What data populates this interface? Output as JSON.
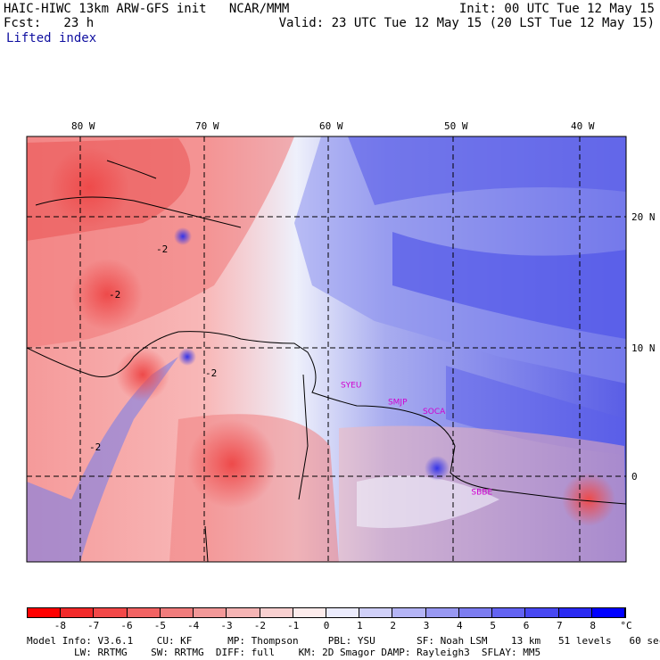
{
  "header": {
    "model_title": "HAIC-HIWC 13km ARW-GFS init   NCAR/MMM",
    "fcst_label": "Fcst:   23 h",
    "field_name": "Lifted index",
    "init_time": "Init: 00 UTC Tue 12 May 15",
    "valid_time": "Valid: 23 UTC Tue 12 May 15 (20 LST Tue 12 May 15)"
  },
  "map": {
    "lon_labels": [
      "80 W",
      "70 W",
      "60 W",
      "50 W",
      "40 W"
    ],
    "lat_labels": [
      "20 N",
      "10 N",
      "0"
    ],
    "stations": [
      {
        "id": "SYEU",
        "lon": -59.0,
        "lat": 6.8
      },
      {
        "id": "SMJP",
        "lon": -55.2,
        "lat": 5.5
      },
      {
        "id": "SOCA",
        "lon": -52.4,
        "lat": 4.8
      },
      {
        "id": "SBBE",
        "lon": -48.5,
        "lat": -1.4
      }
    ],
    "contour_labels": [
      "-2",
      "-2",
      "-2",
      "-2"
    ],
    "colors": {
      "negative": "#e83838",
      "neutral": "#ffffff",
      "positive": "#3c3ce6",
      "station_label": "#d000d0",
      "coastline": "#000000"
    }
  },
  "colorbar": {
    "labels": [
      "-8",
      "-7",
      "-6",
      "-5",
      "-4",
      "-3",
      "-2",
      "-1",
      "0",
      "1",
      "2",
      "3",
      "4",
      "5",
      "6",
      "7",
      "8",
      "°C"
    ],
    "colors": [
      "#ff0000",
      "#f22a2a",
      "#f24848",
      "#f26363",
      "#f07c7c",
      "#f29898",
      "#f5b4b4",
      "#f8d0d0",
      "#fdecec",
      "#ececfd",
      "#d0d0f8",
      "#b4b4f5",
      "#9898f2",
      "#7c7cf0",
      "#6363f2",
      "#4848f2",
      "#2a2af2",
      "#0000ff"
    ]
  },
  "footer": {
    "line1": "Model Info: V3.6.1    CU: KF      MP: Thompson     PBL: YSU       SF: Noah LSM    13 km   51 levels   60 sec",
    "line2": "        LW: RRTMG    SW: RRTMG  DIFF: full    KM: 2D Smagor DAMP: Rayleigh3  SFLAY: MM5"
  }
}
